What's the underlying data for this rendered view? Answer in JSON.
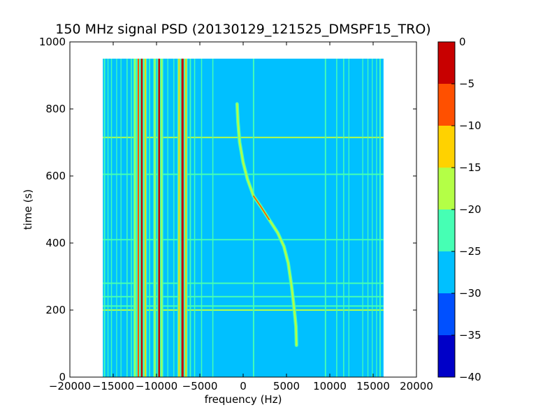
{
  "chart_data": {
    "type": "heatmap",
    "title": "150 MHz signal PSD (20130129_121525_DMSPF15_TRO)",
    "xlabel": "frequency (Hz)",
    "ylabel": "time (s)",
    "xlim": [
      -20000,
      20000
    ],
    "ylim": [
      0,
      1000
    ],
    "x_ticks": [
      -20000,
      -15000,
      -10000,
      -5000,
      0,
      5000,
      10000,
      15000,
      20000
    ],
    "x_tick_labels": [
      "−20000",
      "−15000",
      "−10000",
      "−5000",
      "0",
      "5000",
      "10000",
      "15000",
      "20000"
    ],
    "y_ticks": [
      0,
      200,
      400,
      600,
      800,
      1000
    ],
    "y_tick_labels": [
      "0",
      "200",
      "400",
      "600",
      "800",
      "1000"
    ],
    "data_extent": {
      "freq": [
        -16200,
        16200
      ],
      "time": [
        0,
        950
      ]
    },
    "background_level": -27.5,
    "colorbar": {
      "levels": [
        -40,
        -35,
        -30,
        -25,
        -20,
        -15,
        -10,
        -5,
        0
      ],
      "tick_labels": [
        "−40",
        "−35",
        "−30",
        "−25",
        "−20",
        "−15",
        "−10",
        "−5",
        "0"
      ],
      "colors": [
        "#0000c8",
        "#0050ff",
        "#00c0ff",
        "#46ffb4",
        "#b4ff46",
        "#ffd200",
        "#ff5000",
        "#c80000"
      ]
    },
    "vertical_lines": [
      {
        "freq": -16000,
        "width": 150,
        "level": -22
      },
      {
        "freq": -15600,
        "width": 100,
        "level": -22
      },
      {
        "freq": -15200,
        "width": 120,
        "level": -22
      },
      {
        "freq": -14600,
        "width": 100,
        "level": -22
      },
      {
        "freq": -14100,
        "width": 100,
        "level": -22
      },
      {
        "freq": -13400,
        "width": 120,
        "level": -22
      },
      {
        "freq": -12900,
        "width": 120,
        "level": -22
      },
      {
        "freq": -12500,
        "width": 120,
        "level": -17
      },
      {
        "freq": -12100,
        "width": 160,
        "level": -7
      },
      {
        "freq": -11700,
        "width": 200,
        "level": -2
      },
      {
        "freq": -11300,
        "width": 150,
        "level": -12
      },
      {
        "freq": -10800,
        "width": 130,
        "level": -22
      },
      {
        "freq": -10200,
        "width": 120,
        "level": -17
      },
      {
        "freq": -9700,
        "width": 200,
        "level": -2
      },
      {
        "freq": -9400,
        "width": 120,
        "level": -17
      },
      {
        "freq": -8700,
        "width": 100,
        "level": -22
      },
      {
        "freq": -8000,
        "width": 100,
        "level": -22
      },
      {
        "freq": -7400,
        "width": 150,
        "level": -12
      },
      {
        "freq": -7000,
        "width": 250,
        "level": -2
      },
      {
        "freq": -6600,
        "width": 150,
        "level": -12
      },
      {
        "freq": -6100,
        "width": 150,
        "level": -22
      },
      {
        "freq": -5600,
        "width": 120,
        "level": -22
      },
      {
        "freq": -4800,
        "width": 120,
        "level": -22
      },
      {
        "freq": -3500,
        "width": 120,
        "level": -22
      },
      {
        "freq": 1200,
        "width": 150,
        "level": -22
      },
      {
        "freq": 9500,
        "width": 150,
        "level": -22
      },
      {
        "freq": 10800,
        "width": 120,
        "level": -22
      },
      {
        "freq": 11600,
        "width": 120,
        "level": -22
      },
      {
        "freq": 12200,
        "width": 100,
        "level": -22
      },
      {
        "freq": 13800,
        "width": 100,
        "level": -22
      },
      {
        "freq": 14400,
        "width": 100,
        "level": -22
      },
      {
        "freq": 14900,
        "width": 100,
        "level": -22
      },
      {
        "freq": 15400,
        "width": 100,
        "level": -22
      },
      {
        "freq": 15800,
        "width": 150,
        "level": -22
      }
    ],
    "horizontal_lines": [
      {
        "time": 200,
        "level": -17
      },
      {
        "time": 212,
        "level": -22
      },
      {
        "time": 715,
        "level": -17
      },
      {
        "time": 605,
        "level": -22
      },
      {
        "time": 280,
        "level": -22
      },
      {
        "time": 410,
        "level": -22
      },
      {
        "time": 240,
        "level": -22
      }
    ],
    "doppler_trace": {
      "level": -17,
      "peak_level": -7,
      "peak_time_range": [
        450,
        560
      ],
      "points": [
        {
          "freq": -700,
          "time": 815
        },
        {
          "freq": -600,
          "time": 760
        },
        {
          "freq": -400,
          "time": 700
        },
        {
          "freq": 0,
          "time": 640
        },
        {
          "freq": 500,
          "time": 590
        },
        {
          "freq": 1200,
          "time": 540
        },
        {
          "freq": 2000,
          "time": 510
        },
        {
          "freq": 3000,
          "time": 470
        },
        {
          "freq": 4000,
          "time": 430
        },
        {
          "freq": 4700,
          "time": 390
        },
        {
          "freq": 5200,
          "time": 340
        },
        {
          "freq": 5600,
          "time": 270
        },
        {
          "freq": 5900,
          "time": 200
        },
        {
          "freq": 6100,
          "time": 150
        },
        {
          "freq": 6150,
          "time": 95
        }
      ]
    }
  }
}
